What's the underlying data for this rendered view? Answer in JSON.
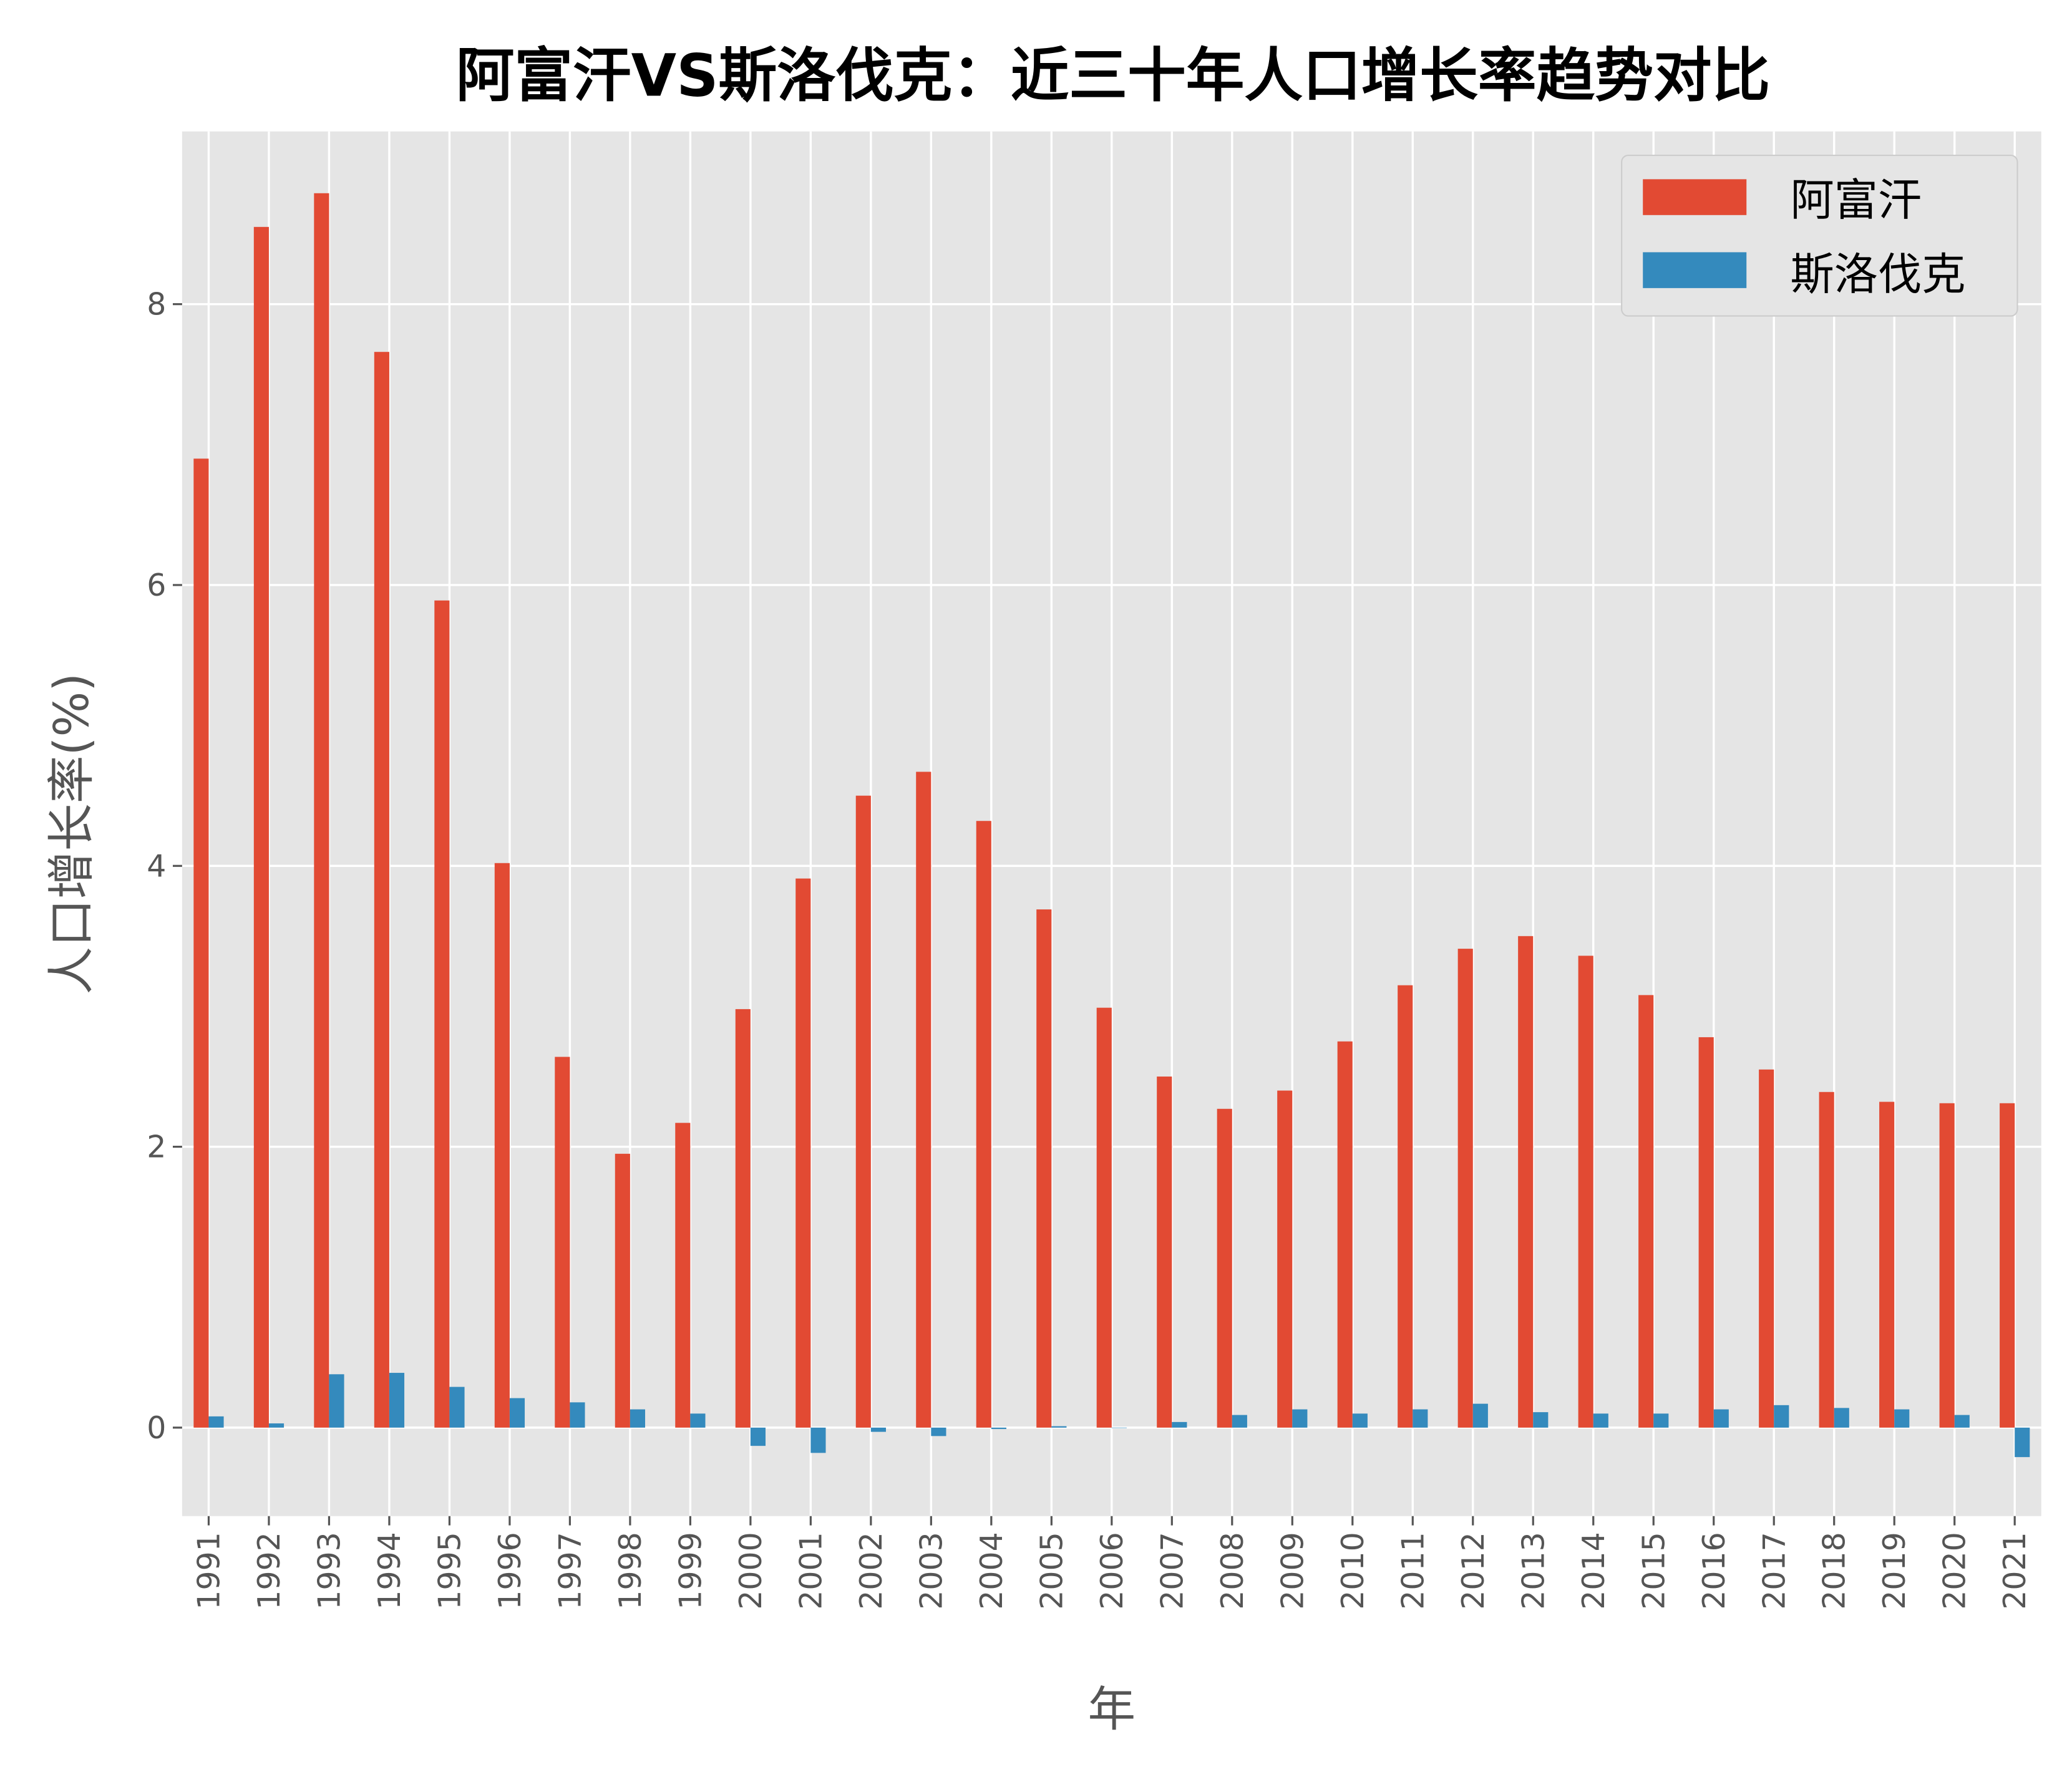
{
  "chart_data": {
    "type": "bar",
    "title": "阿富汗VS斯洛伐克：近三十年人口增长率趋势对比",
    "xlabel": "年",
    "ylabel": "人口增长率(%)",
    "ylim": [
      -0.63,
      9.23
    ],
    "yticks": [
      0,
      2,
      4,
      6,
      8
    ],
    "grid": true,
    "legend_position": "top-right",
    "categories": [
      "1991",
      "1992",
      "1993",
      "1994",
      "1995",
      "1996",
      "1997",
      "1998",
      "1999",
      "2000",
      "2001",
      "2002",
      "2003",
      "2004",
      "2005",
      "2006",
      "2007",
      "2008",
      "2009",
      "2010",
      "2011",
      "2012",
      "2013",
      "2014",
      "2015",
      "2016",
      "2017",
      "2018",
      "2019",
      "2020",
      "2021"
    ],
    "series": [
      {
        "name": "阿富汗",
        "color": "#E24A33",
        "values": [
          6.9,
          8.55,
          8.79,
          7.66,
          5.89,
          4.02,
          2.64,
          1.95,
          2.17,
          2.98,
          3.91,
          4.5,
          4.67,
          4.32,
          3.69,
          2.99,
          2.5,
          2.27,
          2.4,
          2.75,
          3.15,
          3.41,
          3.5,
          3.36,
          3.08,
          2.78,
          2.55,
          2.39,
          2.32,
          2.31,
          2.31
        ]
      },
      {
        "name": "斯洛伐克",
        "color": "#348ABD",
        "values": [
          0.08,
          0.03,
          0.38,
          0.39,
          0.29,
          0.21,
          0.18,
          0.13,
          0.1,
          -0.13,
          -0.18,
          -0.03,
          -0.06,
          -0.01,
          0.01,
          0.0,
          0.04,
          0.09,
          0.13,
          0.1,
          0.13,
          0.17,
          0.11,
          0.1,
          0.1,
          0.13,
          0.16,
          0.14,
          0.13,
          0.09,
          -0.21
        ]
      }
    ]
  }
}
